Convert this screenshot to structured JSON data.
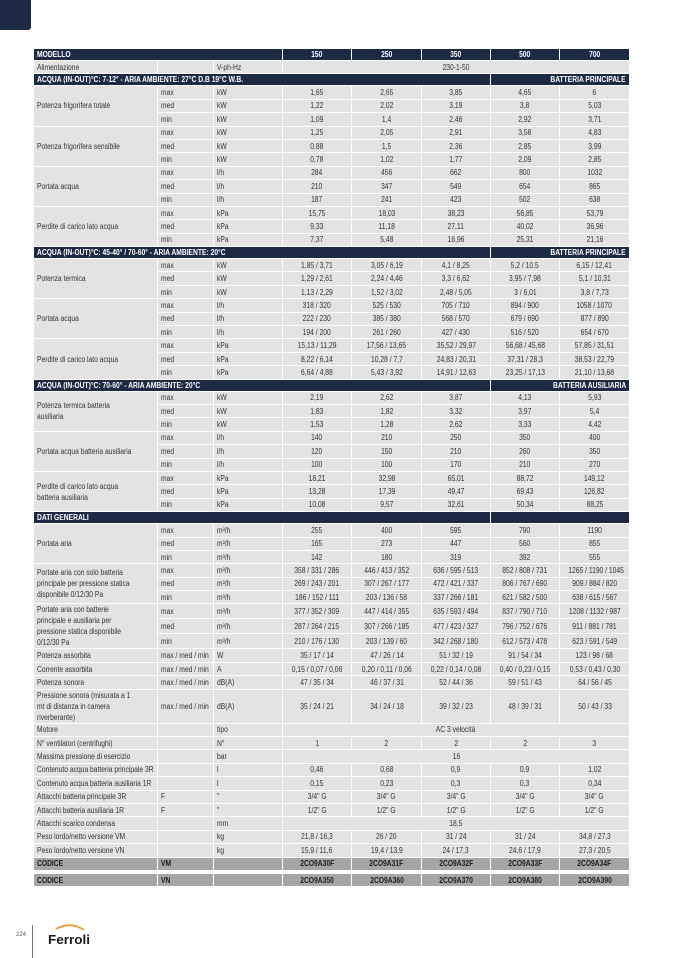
{
  "colors": {
    "header_bg": "#1c2a44",
    "cell_bg": "#e3e3e3",
    "code_bg": "#a6a6a6",
    "logo_arc": "#f0a040"
  },
  "page_number": "224",
  "logo_text": "Ferroli",
  "rows": [
    {
      "type": "header",
      "label": "MODELLO",
      "values": [
        "150",
        "250",
        "350",
        "500",
        "700"
      ]
    },
    {
      "type": "span",
      "label": "Alimentazione",
      "sub": "",
      "unit": "V-ph-Hz",
      "value": "230-1-50"
    },
    {
      "type": "section",
      "title": "ACQUA (IN-OUT)°C: 7-12° - ARIA AMBIENTE: 27°C D.B 19°C W.B.",
      "right": "BATTERIA PRINCIPALE"
    },
    {
      "type": "group",
      "label": "Potenza frigorifera totale",
      "rows": [
        {
          "sub": "max",
          "unit": "kW",
          "values": [
            "1,65",
            "2,65",
            "3,85",
            "4,65",
            "6"
          ]
        },
        {
          "sub": "med",
          "unit": "kW",
          "values": [
            "1,22",
            "2,02",
            "3,19",
            "3,8",
            "5,03"
          ]
        },
        {
          "sub": "min",
          "unit": "kW",
          "values": [
            "1,09",
            "1,4",
            "2,46",
            "2,92",
            "3,71"
          ]
        }
      ]
    },
    {
      "type": "group",
      "label": "Potenza frigorifera sensibile",
      "rows": [
        {
          "sub": "max",
          "unit": "kW",
          "values": [
            "1,25",
            "2,05",
            "2,91",
            "3,58",
            "4,83"
          ]
        },
        {
          "sub": "med",
          "unit": "kW",
          "values": [
            "0,88",
            "1,5",
            "2,36",
            "2,85",
            "3,99"
          ]
        },
        {
          "sub": "min",
          "unit": "kW",
          "values": [
            "0,78",
            "1,02",
            "1,77",
            "2,09",
            "2,85"
          ]
        }
      ]
    },
    {
      "type": "group",
      "label": "Portata acqua",
      "rows": [
        {
          "sub": "max",
          "unit": "l/h",
          "values": [
            "284",
            "456",
            "662",
            "800",
            "1032"
          ]
        },
        {
          "sub": "med",
          "unit": "l/h",
          "values": [
            "210",
            "347",
            "549",
            "654",
            "865"
          ]
        },
        {
          "sub": "min",
          "unit": "l/h",
          "values": [
            "187",
            "241",
            "423",
            "502",
            "638"
          ]
        }
      ]
    },
    {
      "type": "group",
      "label": "Perdite di carico lato acqua",
      "rows": [
        {
          "sub": "max",
          "unit": "kPa",
          "values": [
            "15,75",
            "18,03",
            "38,23",
            "56,85",
            "53,79"
          ]
        },
        {
          "sub": "med",
          "unit": "kPa",
          "values": [
            "9,33",
            "11,18",
            "27,11",
            "40,02",
            "36,96"
          ]
        },
        {
          "sub": "min",
          "unit": "kPa",
          "values": [
            "7,37",
            "5,48",
            "16,96",
            "25,31",
            "21,16"
          ]
        }
      ]
    },
    {
      "type": "section",
      "title": "ACQUA (IN-OUT)°C: 45-40° / 70-60° - ARIA AMBIENTE: 20°C",
      "right": "BATTERIA PRINCIPALE"
    },
    {
      "type": "group",
      "label": "Potenza termica",
      "rows": [
        {
          "sub": "max",
          "unit": "kW",
          "values": [
            "1,85 / 3,71",
            "3,05 / 6,19",
            "4,1 / 8,25",
            "5,2 / 10,5",
            "6,15 / 12,41"
          ]
        },
        {
          "sub": "med",
          "unit": "kW",
          "values": [
            "1,29 / 2,61",
            "2,24 / 4,46",
            "3,3 / 6,62",
            "3,95 / 7,98",
            "5,1 / 10,31"
          ]
        },
        {
          "sub": "min",
          "unit": "kW",
          "values": [
            "1,13 / 2,29",
            "1,52 / 3,02",
            "2,48 / 5,05",
            "3 / 6,01",
            "3,8 / 7,73"
          ]
        }
      ]
    },
    {
      "type": "group",
      "label": "Portata acqua",
      "rows": [
        {
          "sub": "max",
          "unit": "l/h",
          "values": [
            "318 / 320",
            "525 / 530",
            "705 / 710",
            "894 / 900",
            "1058 / 1070"
          ]
        },
        {
          "sub": "med",
          "unit": "l/h",
          "values": [
            "222 / 230",
            "385 / 380",
            "568 / 570",
            "679 / 690",
            "877 / 890"
          ]
        },
        {
          "sub": "min",
          "unit": "l/h",
          "values": [
            "194 / 200",
            "261 / 260",
            "427 / 430",
            "516 / 520",
            "654 / 670"
          ]
        }
      ]
    },
    {
      "type": "group",
      "label": "Perdite di carico lato acqua",
      "rows": [
        {
          "sub": "max",
          "unit": "kPa",
          "values": [
            "15,13 / 11,29",
            "17,56 / 13,65",
            "35,52 / 29,97",
            "56,68 / 45,68",
            "57,85 / 31,51"
          ]
        },
        {
          "sub": "med",
          "unit": "kPa",
          "values": [
            "8,22 / 6,14",
            "10,28 / 7,7",
            "24,83 / 20,31",
            "37,31 / 28,3",
            "38,53 / 22,79"
          ]
        },
        {
          "sub": "min",
          "unit": "kPa",
          "values": [
            "6,64 / 4,88",
            "5,43 / 3,92",
            "14,91 / 12,63",
            "23,25 / 17,13",
            "21,10 / 13,68"
          ]
        }
      ]
    },
    {
      "type": "section",
      "title": "ACQUA (IN-OUT)°C: 70-60° - ARIA AMBIENTE: 20°C",
      "right": "BATTERIA AUSILIARIA"
    },
    {
      "type": "group",
      "label": "Potenza termica batteria ausiliaria",
      "rows": [
        {
          "sub": "max",
          "unit": "kW",
          "values": [
            "2,19",
            "2,62",
            "3,87",
            "4,13",
            "5,93"
          ]
        },
        {
          "sub": "med",
          "unit": "kW",
          "values": [
            "1,83",
            "1,82",
            "3,32",
            "3,97",
            "5,4"
          ]
        },
        {
          "sub": "min",
          "unit": "kW",
          "values": [
            "1,53",
            "1,28",
            "2,62",
            "3,33",
            "4,42"
          ]
        }
      ]
    },
    {
      "type": "group",
      "label": "Portata acqua batteria ausiliaria",
      "rows": [
        {
          "sub": "max",
          "unit": "l/h",
          "values": [
            "140",
            "210",
            "250",
            "350",
            "400"
          ]
        },
        {
          "sub": "med",
          "unit": "l/h",
          "values": [
            "120",
            "150",
            "210",
            "260",
            "350"
          ]
        },
        {
          "sub": "min",
          "unit": "l/h",
          "values": [
            "100",
            "100",
            "170",
            "210",
            "270"
          ]
        }
      ]
    },
    {
      "type": "group",
      "label": "Perdite di carico lato acqua batteria ausiliaria",
      "rows": [
        {
          "sub": "max",
          "unit": "kPa",
          "values": [
            "18,21",
            "32,98",
            "65,01",
            "88,72",
            "149,12"
          ]
        },
        {
          "sub": "med",
          "unit": "kPa",
          "values": [
            "13,28",
            "17,39",
            "49,47",
            "69,43",
            "126,82"
          ]
        },
        {
          "sub": "min",
          "unit": "kPa",
          "values": [
            "10,08",
            "9,57",
            "32,61",
            "50,34",
            "88,25"
          ]
        }
      ]
    },
    {
      "type": "section",
      "title": "DATI GENERALI",
      "right": ""
    },
    {
      "type": "group",
      "label": "Portata aria",
      "rows": [
        {
          "sub": "max",
          "unit": "m³/h",
          "values": [
            "255",
            "400",
            "595",
            "790",
            "1190"
          ]
        },
        {
          "sub": "med",
          "unit": "m³/h",
          "values": [
            "165",
            "273",
            "447",
            "560",
            "855"
          ]
        },
        {
          "sub": "min",
          "unit": "m³/h",
          "values": [
            "142",
            "180",
            "319",
            "392",
            "555"
          ]
        }
      ]
    },
    {
      "type": "group",
      "label": "Portate aria con solo batteria principale per pressione statica disponibile 0/12/30 Pa",
      "rows": [
        {
          "sub": "max",
          "unit": "m³/h",
          "values": [
            "358 / 331 / 286",
            "446 / 413 / 352",
            "636 / 595 / 513",
            "852 / 808 / 731",
            "1265 / 1190 / 1045"
          ]
        },
        {
          "sub": "med",
          "unit": "m³/h",
          "values": [
            "269 / 243 / 201",
            "307 / 267 / 177",
            "472 / 421 / 337",
            "806 / 767 / 690",
            "909 / 884 / 820"
          ]
        },
        {
          "sub": "min",
          "unit": "m³/h",
          "values": [
            "186 / 152 / 111",
            "203 / 136 / 58",
            "337 / 266 / 181",
            "621 / 582 / 500",
            "638 / 615 / 567"
          ]
        }
      ]
    },
    {
      "type": "group",
      "label": "Portate aria con batterie principale e ausiliaria per pressione statica disponibile 0/12/30 Pa",
      "rows": [
        {
          "sub": "max",
          "unit": "m³/h",
          "values": [
            "377 / 352 / 309",
            "447 / 414 / 355",
            "635 / 593 / 494",
            "837 / 790 / 710",
            "1208 / 1132 / 987"
          ]
        },
        {
          "sub": "med",
          "unit": "m³/h",
          "values": [
            "287 / 264 / 215",
            "307 / 266 / 185",
            "477 / 423 / 327",
            "796 / 752 / 676",
            "911 / 881 / 781"
          ]
        },
        {
          "sub": "min",
          "unit": "m³/h",
          "values": [
            "210 / 176 / 130",
            "203 / 139 / 60",
            "342 / 268 / 180",
            "612 / 573 / 478",
            "623 / 591 / 549"
          ]
        }
      ]
    },
    {
      "type": "single",
      "label": "Potenza assorbita",
      "sub": "max / med / min",
      "unit": "W",
      "values": [
        "35 / 17 / 14",
        "47 / 26 / 14",
        "51 / 32 / 19",
        "91 / 54 / 34",
        "123 / 98 / 68"
      ]
    },
    {
      "type": "single",
      "label": "Corrente assorbita",
      "sub": "max / med / min",
      "unit": "A",
      "values": [
        "0,15 / 0,07 / 0,06",
        "0,20 / 0,11 / 0,06",
        "0,22 / 0,14 / 0,08",
        "0,40 / 0,23 / 0,15",
        "0,53 / 0,43 / 0,30"
      ]
    },
    {
      "type": "single",
      "label": "Potenza sonora",
      "sub": "max / med / min",
      "unit": "dB(A)",
      "values": [
        "47 / 35 / 34",
        "46 / 37 / 31",
        "52 / 44 / 36",
        "59 / 51 / 43",
        "64 / 56 / 45"
      ]
    },
    {
      "type": "single",
      "tall": true,
      "label": "Pressione sonora (misurata a 1 mt di distanza in camera riverberante)",
      "sub": "max / med / min",
      "unit": "dB(A)",
      "values": [
        "35 / 24 / 21",
        "34 / 24 / 18",
        "39 / 32 / 23",
        "48 / 39 / 31",
        "50 / 43 / 33"
      ]
    },
    {
      "type": "span",
      "label": "Motore",
      "sub": "",
      "unit": "tipo",
      "value": "AC 3 velocità"
    },
    {
      "type": "single",
      "label": "N° ventilatori (centrifughi)",
      "sub": "",
      "unit": "N°",
      "values": [
        "1",
        "2",
        "2",
        "2",
        "3"
      ]
    },
    {
      "type": "span",
      "label": "Massima pressione di esercizio",
      "sub": "",
      "unit": "bar",
      "value": "16"
    },
    {
      "type": "single",
      "label": "Contenuto acqua batteria principale 3R",
      "sub": "",
      "unit": "l",
      "values": [
        "0,46",
        "0,68",
        "0,9",
        "0,9",
        "1,02"
      ]
    },
    {
      "type": "single",
      "label": "Contenuto acqua batteria ausiliaria 1R",
      "sub": "",
      "unit": "l",
      "values": [
        "0,15",
        "0,23",
        "0,3",
        "0,3",
        "0,34"
      ]
    },
    {
      "type": "single",
      "label": "Attacchi batteria principale 3R",
      "sub": "F",
      "unit": "\"",
      "values": [
        "3/4\" G",
        "3/4\" G",
        "3/4\" G",
        "3/4\" G",
        "3/4\" G"
      ]
    },
    {
      "type": "single",
      "label": "Attacchi batteria ausiliaria 1R",
      "sub": "F",
      "unit": "\"",
      "values": [
        "1/2\" G",
        "1/2\" G",
        "1/2\" G",
        "1/2\" G",
        "1/2\" G"
      ]
    },
    {
      "type": "span",
      "label": "Attacchi scarico condensa",
      "sub": "",
      "unit": "mm",
      "value": "18,5"
    },
    {
      "type": "single",
      "label": "Peso lordo/netto versione VM",
      "sub": "",
      "unit": "kg",
      "values": [
        "21,8 / 16,3",
        "26 / 20",
        "31 / 24",
        "31 / 24",
        "34,8 / 27,3"
      ]
    },
    {
      "type": "single",
      "label": "Peso lordo/netto versione VN",
      "sub": "",
      "unit": "kg",
      "values": [
        "15,9 / 11,6",
        "19,4 / 13,9",
        "24 / 17,3",
        "24,6 / 17,9",
        "27,3 / 20,5"
      ]
    },
    {
      "type": "code",
      "label": "CODICE",
      "sub": "VM",
      "unit": "",
      "values": [
        "2CO9A30F",
        "2CO9A31F",
        "2CO9A32F",
        "2CO9A33F",
        "2CO9A34F"
      ]
    },
    {
      "type": "gap"
    },
    {
      "type": "code",
      "label": "CODICE",
      "sub": "VN",
      "unit": "",
      "values": [
        "2CO9A350",
        "2CO9A360",
        "2CO9A370",
        "2CO9A380",
        "2CO9A390"
      ]
    }
  ]
}
